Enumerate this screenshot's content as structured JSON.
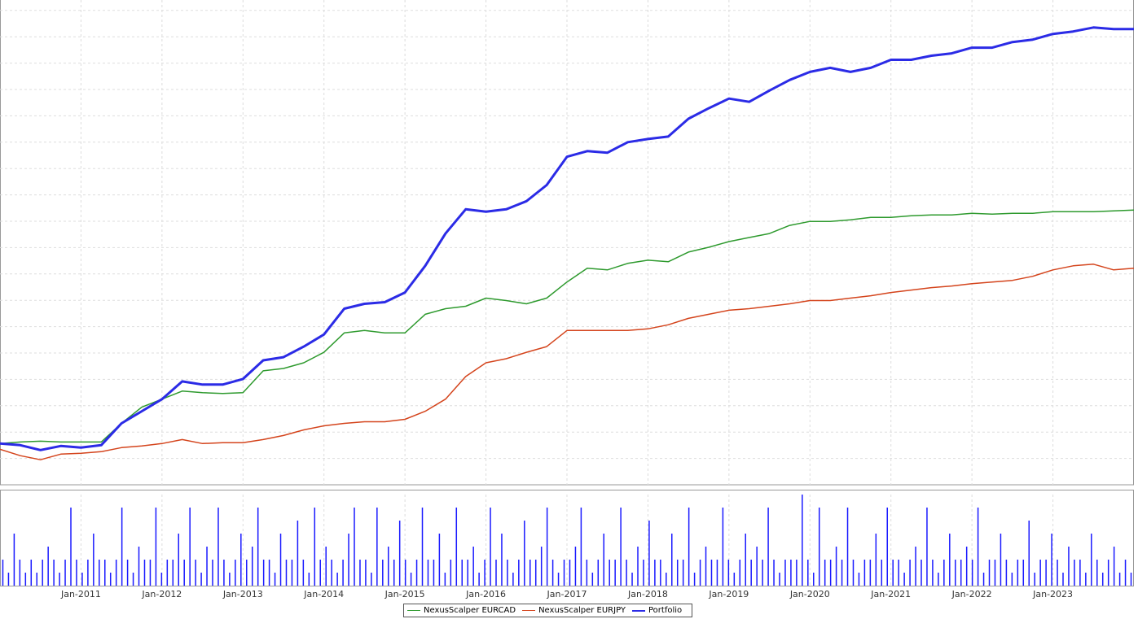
{
  "chart_data": [
    {
      "type": "line",
      "x": [
        "2010-01",
        "2010-04",
        "2010-07",
        "2010-10",
        "2011-01",
        "2011-04",
        "2011-07",
        "2011-10",
        "2012-01",
        "2012-04",
        "2012-07",
        "2012-10",
        "2013-01",
        "2013-04",
        "2013-07",
        "2013-10",
        "2014-01",
        "2014-04",
        "2014-07",
        "2014-10",
        "2015-01",
        "2015-04",
        "2015-07",
        "2015-10",
        "2016-01",
        "2016-04",
        "2016-07",
        "2016-10",
        "2017-01",
        "2017-04",
        "2017-07",
        "2017-10",
        "2018-01",
        "2018-04",
        "2018-07",
        "2018-10",
        "2019-01",
        "2019-04",
        "2019-07",
        "2019-10",
        "2020-01",
        "2020-04",
        "2020-07",
        "2020-10",
        "2021-01",
        "2021-04",
        "2021-07",
        "2021-10",
        "2022-01",
        "2022-04",
        "2022-07",
        "2022-10",
        "2023-01",
        "2023-04",
        "2023-07",
        "2023-10",
        "2024-01"
      ],
      "series": [
        {
          "name": "NexusScalper EURCAD",
          "color": "#2e9a2e",
          "values": [
            51,
            53,
            54,
            53,
            53,
            53,
            76,
            96,
            106,
            116,
            114,
            113,
            114,
            141,
            144,
            151,
            164,
            188,
            191,
            188,
            188,
            211,
            218,
            221,
            231,
            228,
            224,
            231,
            251,
            268,
            266,
            274,
            278,
            276,
            288,
            294,
            301,
            306,
            311,
            321,
            326,
            326,
            328,
            331,
            331,
            333,
            334,
            334,
            336,
            335,
            336,
            336,
            338,
            338,
            338,
            339,
            340
          ]
        },
        {
          "name": "NexusScalper EURJPY",
          "color": "#d4441c",
          "values": [
            44,
            36,
            31,
            38,
            39,
            41,
            46,
            48,
            51,
            56,
            51,
            52,
            52,
            56,
            61,
            68,
            73,
            76,
            78,
            78,
            81,
            91,
            106,
            134,
            151,
            156,
            164,
            171,
            191,
            191,
            191,
            191,
            193,
            198,
            206,
            211,
            216,
            218,
            221,
            224,
            228,
            228,
            231,
            234,
            238,
            241,
            244,
            246,
            249,
            251,
            253,
            258,
            266,
            271,
            273,
            266,
            268
          ]
        },
        {
          "name": "Portfolio",
          "color": "#2b2be6",
          "values": [
            51,
            49,
            43,
            48,
            46,
            49,
            76,
            91,
            106,
            128,
            124,
            124,
            131,
            154,
            158,
            171,
            186,
            218,
            224,
            226,
            238,
            271,
            311,
            341,
            338,
            341,
            351,
            371,
            406,
            413,
            411,
            424,
            428,
            431,
            453,
            466,
            478,
            474,
            488,
            501,
            511,
            516,
            511,
            516,
            526,
            526,
            531,
            534,
            541,
            541,
            548,
            551,
            558,
            561,
            566,
            564,
            564
          ]
        }
      ],
      "xlim": [
        "2010-01",
        "2024-01"
      ],
      "ylim": [
        0,
        600
      ],
      "xticks": [
        {
          "value": "2011-01",
          "label": "Jan-2011"
        },
        {
          "value": "2012-01",
          "label": "Jan-2012"
        },
        {
          "value": "2013-01",
          "label": "Jan-2013"
        },
        {
          "value": "2014-01",
          "label": "Jan-2014"
        },
        {
          "value": "2015-01",
          "label": "Jan-2015"
        },
        {
          "value": "2016-01",
          "label": "Jan-2016"
        },
        {
          "value": "2017-01",
          "label": "Jan-2017"
        },
        {
          "value": "2018-01",
          "label": "Jan-2018"
        },
        {
          "value": "2019-01",
          "label": "Jan-2019"
        },
        {
          "value": "2020-01",
          "label": "Jan-2020"
        },
        {
          "value": "2021-01",
          "label": "Jan-2021"
        },
        {
          "value": "2022-01",
          "label": "Jan-2022"
        },
        {
          "value": "2023-01",
          "label": "Jan-2023"
        }
      ],
      "grid": true
    },
    {
      "type": "bar",
      "color": "#1a1aff",
      "ylim": [
        0,
        7
      ],
      "xlim": [
        "2010-01",
        "2024-01"
      ],
      "values": [
        2,
        1,
        4,
        2,
        1,
        2,
        1,
        2,
        3,
        2,
        1,
        2,
        6,
        2,
        1,
        2,
        4,
        2,
        2,
        1,
        2,
        6,
        2,
        1,
        3,
        2,
        2,
        6,
        1,
        2,
        2,
        4,
        2,
        6,
        2,
        1,
        3,
        2,
        6,
        2,
        1,
        2,
        4,
        2,
        3,
        6,
        2,
        2,
        1,
        4,
        2,
        2,
        5,
        2,
        1,
        6,
        2,
        3,
        2,
        1,
        2,
        4,
        6,
        2,
        2,
        1,
        6,
        2,
        3,
        2,
        5,
        2,
        1,
        2,
        6,
        2,
        2,
        4,
        1,
        2,
        6,
        2,
        2,
        3,
        1,
        2,
        6,
        2,
        4,
        2,
        1,
        2,
        5,
        2,
        2,
        3,
        6,
        2,
        1,
        2,
        2,
        3,
        6,
        2,
        1,
        2,
        4,
        2,
        2,
        6,
        2,
        1,
        3,
        2,
        5,
        2,
        2,
        1,
        4,
        2,
        2,
        6,
        1,
        2,
        3,
        2,
        2,
        6,
        2,
        1,
        2,
        4,
        2,
        3,
        2,
        6,
        2,
        1,
        2,
        2,
        2,
        7,
        2,
        1,
        6,
        2,
        2,
        3,
        2,
        6,
        2,
        1,
        2,
        2,
        4,
        2,
        6,
        2,
        2,
        1,
        2,
        3,
        2,
        6,
        2,
        1,
        2,
        4,
        2,
        2,
        3,
        2,
        6,
        1,
        2,
        2,
        4,
        2,
        1,
        2,
        2,
        5,
        1,
        2,
        2,
        4,
        2,
        1,
        3,
        2,
        2,
        1,
        4,
        2,
        1,
        2,
        3,
        1,
        2,
        1
      ]
    }
  ]
}
